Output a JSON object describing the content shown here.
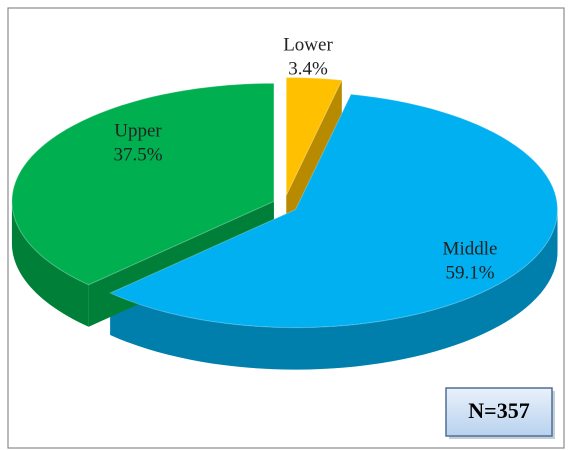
{
  "chart_data": {
    "type": "pie3d",
    "categories": [
      "Lower",
      "Middle",
      "Upper"
    ],
    "values": [
      3.4,
      59.1,
      37.5
    ],
    "value_labels": [
      "3.4%",
      "59.1%",
      "37.5%"
    ],
    "colors": [
      "#ffc000",
      "#00b0f0",
      "#00b050"
    ],
    "annotation": "N=357"
  }
}
